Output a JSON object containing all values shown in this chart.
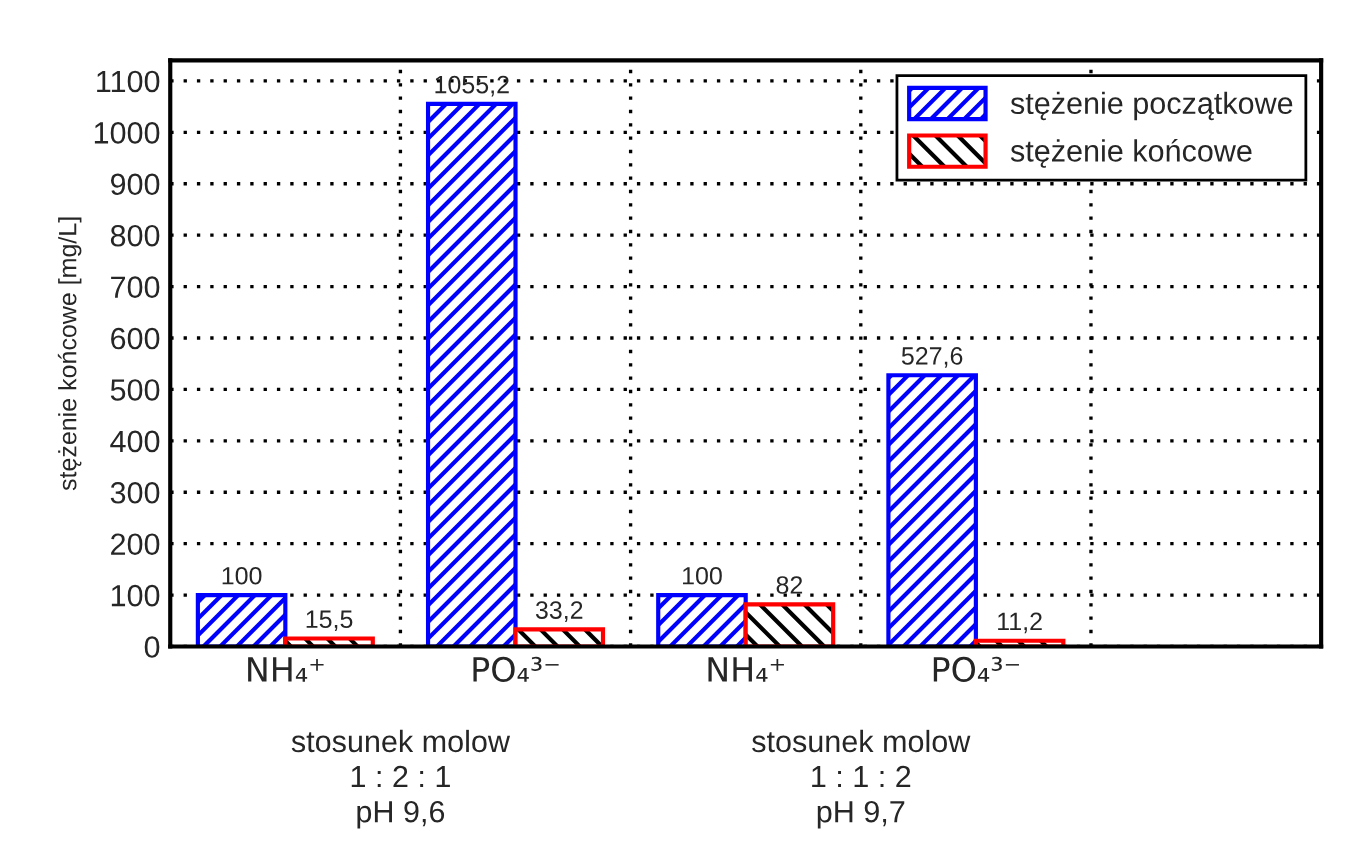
{
  "chart_data": {
    "type": "bar",
    "ylabel": "stężenie końcowe [mg/L]",
    "categories": [
      "NH₄⁺",
      "PO₄³⁻",
      "NH₄⁺",
      "PO₄³⁻",
      null
    ],
    "series": [
      {
        "name": "stężenie początkowe",
        "color": "#0000ff",
        "values": [
          100,
          1055.2,
          100,
          527.6,
          null
        ],
        "value_labels": [
          "100",
          "1055,2",
          "100",
          "527,6",
          null
        ]
      },
      {
        "name": "stężenie końcowe",
        "color": "#ff0000",
        "values": [
          15.5,
          33.2,
          82,
          11.2,
          null
        ],
        "value_labels": [
          "15,5",
          "33,2",
          "82",
          "11,2",
          null
        ]
      }
    ],
    "ylim": [
      0,
      1140
    ],
    "yticks": [
      0,
      100,
      200,
      300,
      400,
      500,
      600,
      700,
      800,
      900,
      1000,
      1100
    ],
    "grid": true,
    "legend": "top right",
    "annotations": [
      "stosunek molow\n1 : 2 : 1\npH 9,6",
      "stosunek molow\n1 : 1 : 2\npH 9,7"
    ]
  }
}
